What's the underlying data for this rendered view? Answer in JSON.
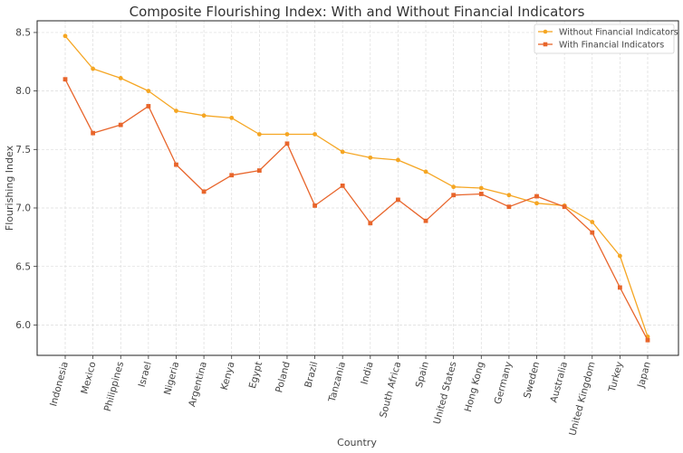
{
  "chart_data": {
    "type": "line",
    "title": "Composite Flourishing Index: With and Without Financial Indicators",
    "xlabel": "Country",
    "ylabel": "Flourishing Index",
    "categories": [
      "Indonesia",
      "Mexico",
      "Philippines",
      "Israel",
      "Nigeria",
      "Argentina",
      "Kenya",
      "Egypt",
      "Poland",
      "Brazil",
      "Tanzania",
      "India",
      "South Africa",
      "Spain",
      "United States",
      "Hong Kong",
      "Germany",
      "Sweden",
      "Australia",
      "United Kingdom",
      "Turkey",
      "Japan"
    ],
    "ylim": [
      5.74,
      8.6
    ],
    "yticks": [
      6.0,
      6.5,
      7.0,
      7.5,
      8.0,
      8.5
    ],
    "ytick_labels": [
      "6.0",
      "6.5",
      "7.0",
      "7.5",
      "8.0",
      "8.5"
    ],
    "grid": true,
    "legend_position": "top-right",
    "series": [
      {
        "name": "Without Financial Indicators",
        "color": "#f5a623",
        "marker": "circle",
        "values": [
          8.47,
          8.19,
          8.11,
          8.0,
          7.83,
          7.79,
          7.77,
          7.63,
          7.63,
          7.63,
          7.48,
          7.43,
          7.41,
          7.31,
          7.18,
          7.17,
          7.11,
          7.04,
          7.02,
          6.88,
          6.59,
          5.9
        ]
      },
      {
        "name": "With Financial Indicators",
        "color": "#e8652b",
        "marker": "square",
        "values": [
          8.1,
          7.64,
          7.71,
          7.87,
          7.37,
          7.14,
          7.28,
          7.32,
          7.55,
          7.02,
          7.19,
          6.87,
          7.07,
          6.89,
          7.11,
          7.12,
          7.01,
          7.1,
          7.01,
          6.79,
          6.32,
          5.87
        ]
      }
    ]
  }
}
